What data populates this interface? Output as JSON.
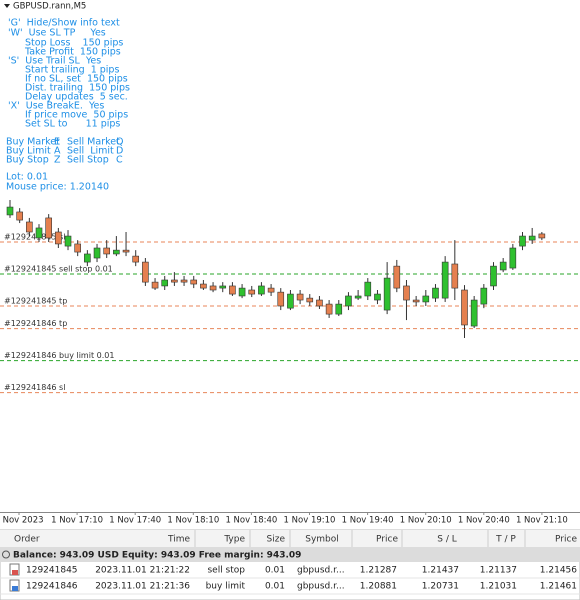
{
  "header": {
    "symbol": "GBPUSD.rann,M5"
  },
  "info": {
    "lines": [
      "'G'  Hide/Show info text",
      "'W'  Use SL TP     Yes",
      "Stop Loss    150 pips",
      "Take Profit  150 pips",
      "'S'  Use Trail SL  Yes",
      "Start trailing  1 pips",
      "If no SL, set  150 pips",
      "Dist. trailing  150 pips",
      "Delay updates  5 sec.",
      "'X'  Use BreakE.  Yes",
      "If price move  50 pips",
      "Set SL to      11 pips"
    ],
    "keys": [
      [
        "Buy Market",
        "E",
        "Sell Market",
        "Q"
      ],
      [
        "Buy Limit",
        "A",
        "Sell  Limit",
        "D"
      ],
      [
        "Buy Stop",
        "Z",
        "Sell Stop",
        "C"
      ]
    ],
    "lot": "Lot: 0.01",
    "mouse": "Mouse price: 1.20140"
  },
  "chart": {
    "type": "candlestick",
    "ylim": [
      1.20171,
      1.22572
    ],
    "up_color": "#2fc02f",
    "down_color": "#e5804f",
    "open": [
      1.21564,
      1.21578,
      1.21531,
      1.21456,
      1.2155,
      1.21484,
      1.21418,
      1.21428,
      1.21343,
      1.21362,
      1.21409,
      1.21381,
      1.21399,
      1.21371,
      1.21343,
      1.21249,
      1.21231,
      1.21259,
      1.21259,
      1.21259,
      1.2124,
      1.21231,
      1.21221,
      1.21231,
      1.21184,
      1.21212,
      1.21193,
      1.21221,
      1.21202,
      1.21127,
      1.21193,
      1.21174,
      1.21165,
      1.21146,
      1.21099,
      1.21137,
      1.21174,
      1.21184,
      1.21165,
      1.21118,
      1.21324,
      1.21231,
      1.21165,
      1.21156,
      1.21174,
      1.21174,
      1.21334,
      1.21212,
      1.21043,
      1.21146,
      1.21231,
      1.21306,
      1.21315,
      1.21418,
      1.21446,
      1.21475
    ],
    "high": [
      1.21634,
      1.21596,
      1.2155,
      1.21521,
      1.21568,
      1.21503,
      1.21493,
      1.21446,
      1.21399,
      1.21428,
      1.21446,
      1.21465,
      1.21484,
      1.21399,
      1.21362,
      1.21268,
      1.21278,
      1.21296,
      1.21278,
      1.21278,
      1.21259,
      1.21249,
      1.21249,
      1.21249,
      1.2124,
      1.21231,
      1.21249,
      1.2124,
      1.21221,
      1.21212,
      1.21212,
      1.21193,
      1.21184,
      1.21165,
      1.21165,
      1.21202,
      1.21212,
      1.21268,
      1.21212,
      1.21343,
      1.21353,
      1.21259,
      1.21184,
      1.21212,
      1.2124,
      1.21371,
      1.21446,
      1.21235,
      1.21184,
      1.2124,
      1.21343,
      1.21362,
      1.21428,
      1.21484,
      1.21503,
      1.21484
    ],
    "low": [
      1.2155,
      1.21526,
      1.21465,
      1.21437,
      1.21437,
      1.21409,
      1.21399,
      1.21371,
      1.21324,
      1.21343,
      1.21362,
      1.21371,
      1.21371,
      1.21324,
      1.21231,
      1.21212,
      1.21212,
      1.21231,
      1.21231,
      1.21221,
      1.21212,
      1.21202,
      1.21202,
      1.21184,
      1.21174,
      1.21179,
      1.21184,
      1.21184,
      1.21118,
      1.21118,
      1.21146,
      1.21137,
      1.21123,
      1.21081,
      1.2109,
      1.21118,
      1.21165,
      1.21165,
      1.21146,
      1.21099,
      1.21202,
      1.21071,
      1.21137,
      1.21137,
      1.21156,
      1.21156,
      1.21165,
      1.20987,
      1.21034,
      1.21127,
      1.21212,
      1.21296,
      1.21306,
      1.21399,
      1.21428,
      1.21446
    ],
    "close": [
      1.21601,
      1.2154,
      1.21484,
      1.21503,
      1.21456,
      1.21428,
      1.21465,
      1.2139,
      1.21381,
      1.21409,
      1.21381,
      1.21399,
      1.2139,
      1.21343,
      1.21249,
      1.21221,
      1.21259,
      1.21249,
      1.21249,
      1.2124,
      1.21221,
      1.21212,
      1.21231,
      1.21193,
      1.21221,
      1.21193,
      1.21231,
      1.21202,
      1.21137,
      1.21193,
      1.21165,
      1.21156,
      1.21137,
      1.21099,
      1.21146,
      1.21184,
      1.21184,
      1.21249,
      1.21193,
      1.21268,
      1.21221,
      1.21165,
      1.21156,
      1.21184,
      1.21221,
      1.21343,
      1.21221,
      1.21048,
      1.21165,
      1.21221,
      1.21324,
      1.21343,
      1.21409,
      1.21465,
      1.21465,
      1.21456
    ],
    "levels": [
      "#129241845 sl",
      "#129241845 sell stop 0.01",
      "#129241845 tp",
      "#129241846 tp",
      "#129241846 buy limit 0.01",
      "#129241846 sl"
    ],
    "time_labels": [
      "1 Nov 2023",
      "1 Nov 17:10",
      "1 Nov 17:40",
      "1 Nov 18:10",
      "1 Nov 18:40",
      "1 Nov 19:10",
      "1 Nov 19:40",
      "1 Nov 20:10",
      "1 Nov 20:40",
      "1 Nov 21:10"
    ]
  },
  "table": {
    "columns": [
      "Order",
      "Time",
      "Type",
      "Size",
      "Symbol",
      "Price",
      "S / L",
      "T / P",
      "Price"
    ],
    "summary": "Balance: 943.09 USD  Equity: 943.09  Free margin: 943.09",
    "rows": [
      [
        129241845,
        "2023.11.01 21:21:22",
        "sell stop",
        0.01,
        "gbpusd.r...",
        1.21287,
        1.21437,
        1.21137,
        1.21456
      ],
      [
        129241846,
        "2023.11.01 21:21:36",
        "buy limit",
        0.01,
        "gbpusd.r...",
        1.20881,
        1.20731,
        1.21031,
        1.21461
      ]
    ]
  }
}
